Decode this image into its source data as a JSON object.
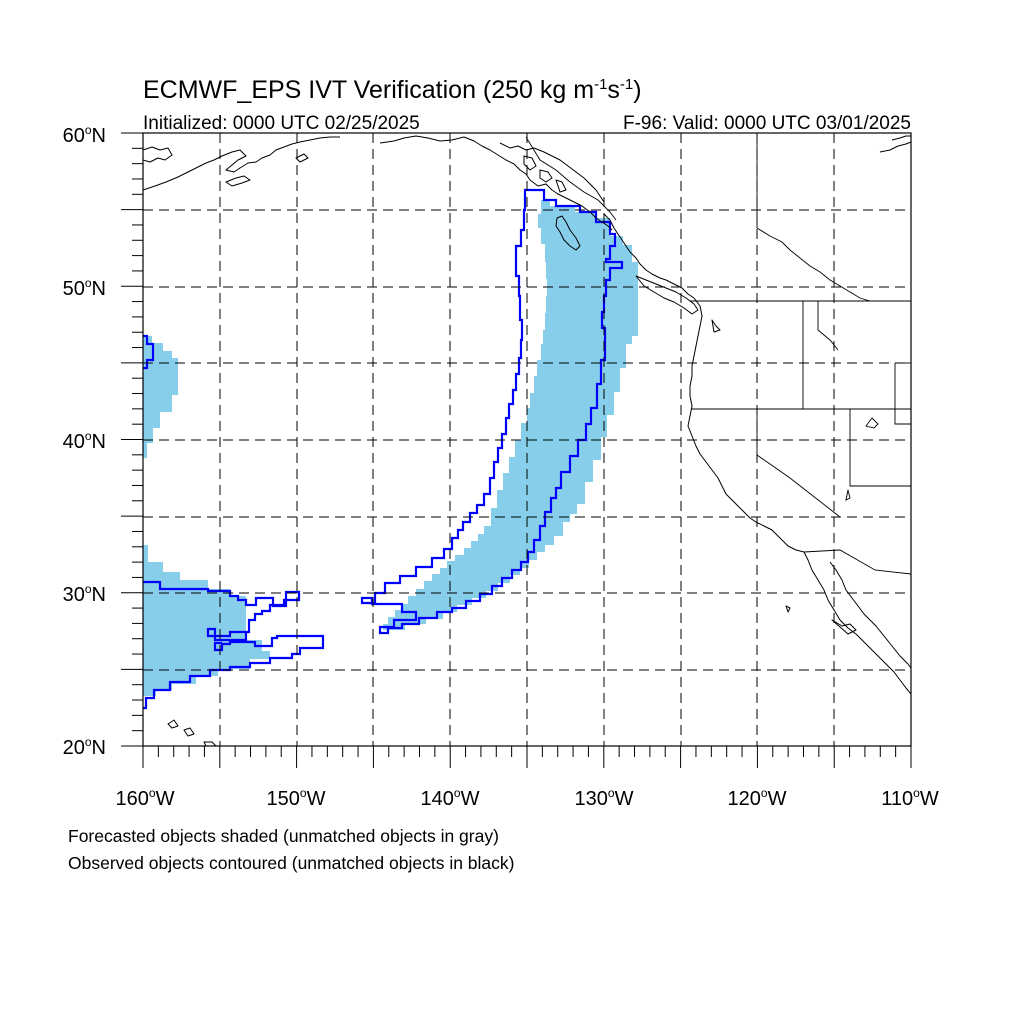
{
  "title": {
    "main": "ECMWF_EPS IVT Verification (250 kg m",
    "sup1": "-1",
    "mid": "s",
    "sup2": "-1",
    "end": ")"
  },
  "initialized": "Initialized: 0000 UTC 02/25/2025",
  "valid": "F-96: Valid: 0000 UTC 03/01/2025",
  "lat_labels": [
    {
      "deg": "60",
      "hemi": "N"
    },
    {
      "deg": "50",
      "hemi": "N"
    },
    {
      "deg": "40",
      "hemi": "N"
    },
    {
      "deg": "30",
      "hemi": "N"
    },
    {
      "deg": "20",
      "hemi": "N"
    }
  ],
  "lon_labels": [
    {
      "deg": "160",
      "hemi": "W"
    },
    {
      "deg": "150",
      "hemi": "W"
    },
    {
      "deg": "140",
      "hemi": "W"
    },
    {
      "deg": "130",
      "hemi": "W"
    },
    {
      "deg": "120",
      "hemi": "W"
    },
    {
      "deg": "110",
      "hemi": "W"
    }
  ],
  "notes": [
    "Forecasted objects shaded (unmatched objects in gray)",
    "Observed objects contoured (unmatched objects in black)"
  ],
  "colors": {
    "forecast_fill": "#87ceeb",
    "observed_contour": "#0000ff",
    "coastline": "#000000",
    "grid": "#000000"
  }
}
